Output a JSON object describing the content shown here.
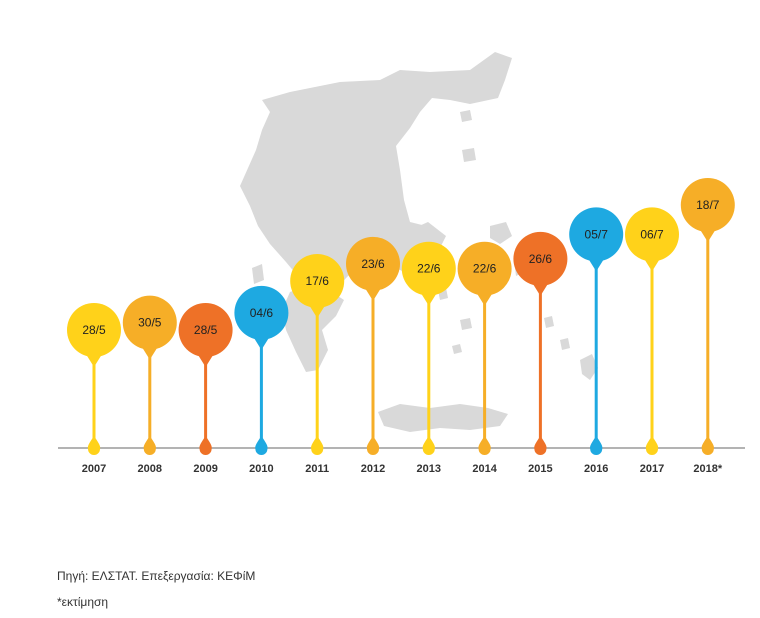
{
  "chart_data": {
    "type": "scatter",
    "categories": [
      "2007",
      "2008",
      "2009",
      "2010",
      "2011",
      "2012",
      "2013",
      "2014",
      "2015",
      "2016",
      "2017",
      "2018*"
    ],
    "labels": [
      "28/5",
      "30/5",
      "28/5",
      "04/6",
      "17/6",
      "23/6",
      "22/6",
      "22/6",
      "26/6",
      "05/7",
      "06/7",
      "18/7"
    ],
    "day_of_year": [
      148,
      151,
      148,
      155,
      168,
      175,
      173,
      173,
      177,
      187,
      187,
      199
    ],
    "ylim": [
      130,
      205
    ],
    "colors": [
      "#FFD21A",
      "#F6AE27",
      "#EE7127",
      "#1EA9E1",
      "#FFD21A",
      "#F6AE27",
      "#FFD21A",
      "#F6AE27",
      "#EE7127",
      "#1EA9E1",
      "#FFD21A",
      "#F6AE27"
    ],
    "grid": false,
    "legend": "none"
  },
  "background": {
    "icon": "greece-map-icon",
    "color": "#D9D9D9"
  },
  "axis_color": "#B3B3B3",
  "footer": {
    "source": "Πηγή: ΕΛΣΤΑΤ. Επεξεργασία: ΚΕΦίΜ",
    "note": "*εκτίμηση"
  }
}
